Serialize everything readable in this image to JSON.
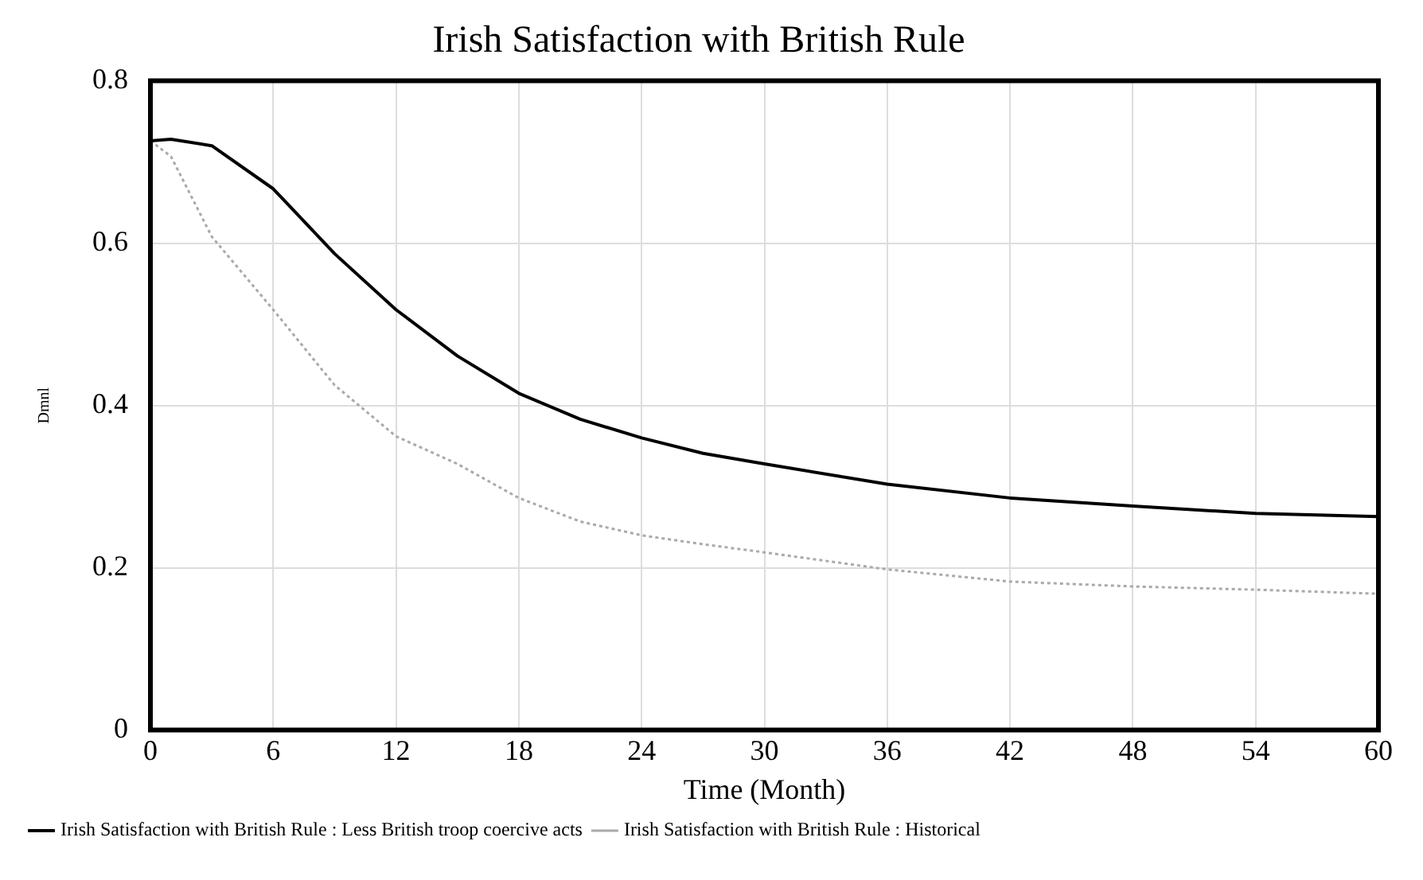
{
  "chart_data": {
    "type": "line",
    "title": "Irish Satisfaction with British Rule",
    "xlabel": "Time (Month)",
    "ylabel": "Dmnl",
    "xlim": [
      0,
      60
    ],
    "xticks": [
      0,
      6,
      12,
      18,
      24,
      30,
      36,
      42,
      48,
      54,
      60
    ],
    "ylim": [
      0,
      0.8
    ],
    "yticks": [
      0,
      0.2,
      0.4,
      0.6,
      0.8
    ],
    "grid": true,
    "legend": "bottom",
    "marker": "none",
    "series": [
      {
        "name": "Irish Satisfaction with British Rule : Less British troop coercive acts",
        "color": "#000000",
        "line_style": "solid",
        "x": [
          0,
          1,
          3,
          6,
          9,
          12,
          15,
          18,
          21,
          24,
          27,
          30,
          36,
          42,
          48,
          54,
          60
        ],
        "values": [
          0.726,
          0.728,
          0.72,
          0.667,
          0.587,
          0.518,
          0.461,
          0.415,
          0.383,
          0.36,
          0.341,
          0.328,
          0.303,
          0.286,
          0.276,
          0.267,
          0.263
        ]
      },
      {
        "name": "Irish Satisfaction with British Rule : Historical",
        "color": "#aaaaaa",
        "line_style": "dotted",
        "x": [
          0,
          1,
          3,
          6,
          9,
          12,
          15,
          18,
          21,
          24,
          27,
          30,
          36,
          42,
          48,
          54,
          60
        ],
        "values": [
          0.726,
          0.707,
          0.608,
          0.518,
          0.425,
          0.362,
          0.328,
          0.286,
          0.257,
          0.24,
          0.229,
          0.219,
          0.198,
          0.183,
          0.177,
          0.173,
          0.168
        ]
      }
    ]
  }
}
